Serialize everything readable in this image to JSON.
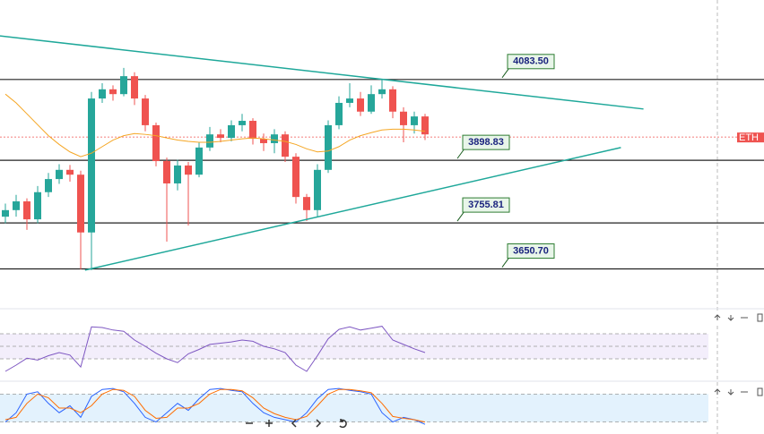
{
  "chart_data": {
    "type": "candlestick",
    "xlim": [
      -0.5,
      70.5
    ],
    "ylim": [
      3570,
      4265
    ],
    "candles": {
      "up_color": "#26a69a",
      "down_color": "#ef5350",
      "open": [
        3770,
        3785,
        3805,
        3764,
        3826,
        3856,
        3877,
        3866,
        3734,
        4040,
        4061,
        4050,
        4091,
        4040,
        3979,
        3897,
        3846,
        3887,
        3866,
        3928,
        3958,
        3950,
        3979,
        3989,
        3948,
        3938,
        3958,
        3907,
        3815,
        3785,
        3877,
        3979,
        4030,
        4040,
        4010,
        4050,
        4061,
        4010,
        3979,
        3999
      ],
      "high": [
        3800,
        3820,
        3812,
        3840,
        3870,
        3890,
        3888,
        3875,
        4055,
        4075,
        4070,
        4110,
        4100,
        4048,
        3985,
        3905,
        3900,
        3895,
        3940,
        3975,
        3970,
        3990,
        4005,
        3995,
        3960,
        3970,
        3965,
        3915,
        3822,
        3890,
        3990,
        4045,
        4075,
        4055,
        4070,
        4083,
        4068,
        4020,
        4010,
        4005
      ],
      "low": [
        3755,
        3770,
        3740,
        3755,
        3815,
        3845,
        3850,
        3650,
        3648,
        4030,
        4035,
        4045,
        4025,
        3965,
        3885,
        3713,
        3830,
        3750,
        3860,
        3920,
        3940,
        3942,
        3965,
        3935,
        3920,
        3915,
        3895,
        3800,
        3760,
        3770,
        3870,
        3970,
        4020,
        4000,
        4005,
        4040,
        3995,
        3940,
        3960,
        3945
      ],
      "close": [
        3785,
        3805,
        3764,
        3826,
        3856,
        3877,
        3866,
        3734,
        4040,
        4061,
        4050,
        4091,
        4040,
        3979,
        3897,
        3846,
        3887,
        3866,
        3928,
        3958,
        3950,
        3979,
        3989,
        3948,
        3938,
        3958,
        3907,
        3815,
        3785,
        3877,
        3979,
        4030,
        4040,
        4010,
        4050,
        4061,
        4010,
        3979,
        3999,
        3958
      ]
    },
    "ma": {
      "color": "#f5a623",
      "values": [
        4050,
        4030,
        4005,
        3980,
        3955,
        3935,
        3918,
        3907,
        3915,
        3930,
        3945,
        3955,
        3960,
        3958,
        3955,
        3950,
        3945,
        3942,
        3940,
        3940,
        3942,
        3945,
        3948,
        3950,
        3948,
        3945,
        3942,
        3935,
        3925,
        3918,
        3920,
        3930,
        3945,
        3955,
        3962,
        3968,
        3970,
        3970,
        3968,
        3965
      ]
    },
    "levels": [
      {
        "value": 4083.5,
        "label": "4083.50"
      },
      {
        "value": 3898.83,
        "label": "3898.83"
      },
      {
        "value": 3755.81,
        "label": "3755.81"
      },
      {
        "value": 3650.7,
        "label": "3650.70"
      }
    ],
    "trendline_color": "#1fa89a",
    "trendlines": [
      {
        "x": [
          -0.5,
          59.3
        ],
        "y": [
          4183,
          4016
        ]
      },
      {
        "x": [
          7.4,
          57.2
        ],
        "y": [
          3648,
          3928
        ]
      }
    ],
    "last_price": {
      "value": 3952,
      "label": "ETH",
      "color": "#ef5350"
    },
    "rsi": {
      "ylim": [
        0,
        100
      ],
      "levels": [
        70,
        50,
        30
      ],
      "color": "#7e57c2",
      "values": [
        10,
        20,
        31,
        28,
        35,
        40,
        36,
        17,
        81,
        80,
        76,
        74,
        60,
        50,
        39,
        30,
        24,
        38,
        45,
        53,
        55,
        57,
        60,
        58,
        50,
        46,
        40,
        20,
        10,
        35,
        62,
        77,
        81,
        76,
        79,
        82,
        60,
        53,
        46,
        40
      ]
    },
    "stoch": {
      "ylim": [
        0,
        100
      ],
      "levels": [
        80,
        20
      ],
      "series": [
        {
          "color": "#2962ff",
          "values": [
            20,
            40,
            80,
            85,
            60,
            40,
            55,
            30,
            75,
            90,
            92,
            85,
            60,
            30,
            20,
            40,
            60,
            45,
            70,
            90,
            92,
            88,
            85,
            60,
            40,
            30,
            25,
            20,
            40,
            70,
            90,
            92,
            88,
            85,
            80,
            40,
            20,
            30,
            25,
            15
          ]
        },
        {
          "color": "#ff6d00",
          "values": [
            25,
            30,
            60,
            80,
            72,
            50,
            50,
            40,
            55,
            80,
            90,
            88,
            75,
            45,
            28,
            30,
            50,
            50,
            60,
            80,
            90,
            90,
            87,
            72,
            50,
            38,
            30,
            25,
            32,
            55,
            80,
            90,
            90,
            87,
            83,
            60,
            32,
            28,
            25,
            20
          ]
        }
      ]
    }
  }
}
